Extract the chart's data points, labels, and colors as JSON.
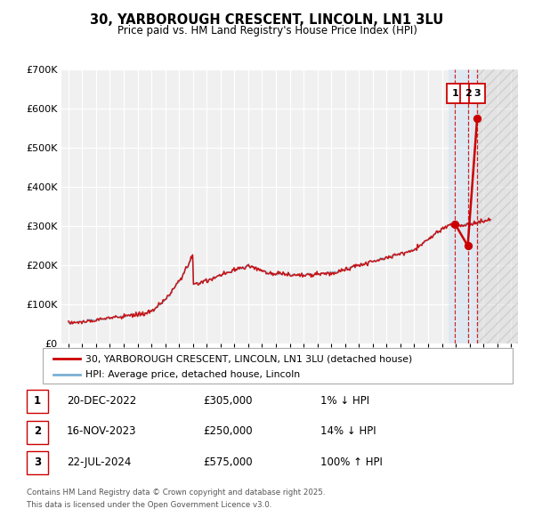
{
  "title": "30, YARBOROUGH CRESCENT, LINCOLN, LN1 3LU",
  "subtitle": "Price paid vs. HM Land Registry's House Price Index (HPI)",
  "ylim": [
    0,
    700000
  ],
  "yticks": [
    0,
    100000,
    200000,
    300000,
    400000,
    500000,
    600000,
    700000
  ],
  "ytick_labels": [
    "£0",
    "£100K",
    "£200K",
    "£300K",
    "£400K",
    "£500K",
    "£600K",
    "£700K"
  ],
  "xlim_start": 1994.5,
  "xlim_end": 2027.5,
  "background_color": "#ffffff",
  "plot_bg_color": "#f0f0f0",
  "grid_color": "#ffffff",
  "hpi_line_color": "#7bafd4",
  "price_line_color": "#cc0000",
  "sale_dot_color": "#cc0000",
  "legend_label_price": "30, YARBOROUGH CRESCENT, LINCOLN, LN1 3LU (detached house)",
  "legend_label_hpi": "HPI: Average price, detached house, Lincoln",
  "sale1_date": "20-DEC-2022",
  "sale1_price": 305000,
  "sale1_hpi_text": "1% ↓ HPI",
  "sale1_x": 2022.96,
  "sale2_date": "16-NOV-2023",
  "sale2_price": 250000,
  "sale2_hpi_text": "14% ↓ HPI",
  "sale2_x": 2023.87,
  "sale3_date": "22-JUL-2024",
  "sale3_price": 575000,
  "sale3_hpi_text": "100% ↑ HPI",
  "sale3_x": 2024.55,
  "footnote_line1": "Contains HM Land Registry data © Crown copyright and database right 2025.",
  "footnote_line2": "This data is licensed under the Open Government Licence v3.0.",
  "hatch_region_start": 2024.6,
  "highlight_region_start": 2022.5,
  "highlight_region_end": 2024.6
}
